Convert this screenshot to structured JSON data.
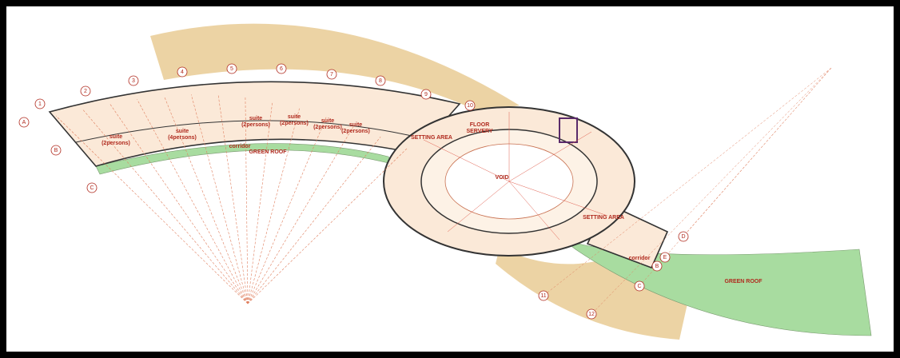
{
  "grid": {
    "numbers": [
      "1",
      "2",
      "3",
      "4",
      "5",
      "6",
      "7",
      "8",
      "9",
      "10",
      "11",
      "12"
    ],
    "letters_left": [
      "A",
      "B",
      "C"
    ],
    "letters_right": [
      "D",
      "E",
      "B",
      "C"
    ]
  },
  "labels": {
    "void": "VOID",
    "green_roof_left": "GREEN ROOF",
    "green_roof_right": "GREEN ROOF",
    "setting_area_top": "SETTING AREA",
    "setting_area_right": "SETTING AREA",
    "floor": "FLOOR",
    "servery": "SERVERY",
    "corridor_left": "corridor",
    "corridor_right": "corridor"
  },
  "suites": [
    {
      "title": "suite",
      "detail": "(2persons)"
    },
    {
      "title": "suite",
      "detail": "(4persons)"
    },
    {
      "title": "suite",
      "detail": "(2persons)"
    },
    {
      "title": "suite",
      "detail": "(2persons)"
    },
    {
      "title": "suite",
      "detail": "(2persons)"
    },
    {
      "title": "suite",
      "detail": "(2persons)"
    }
  ]
}
